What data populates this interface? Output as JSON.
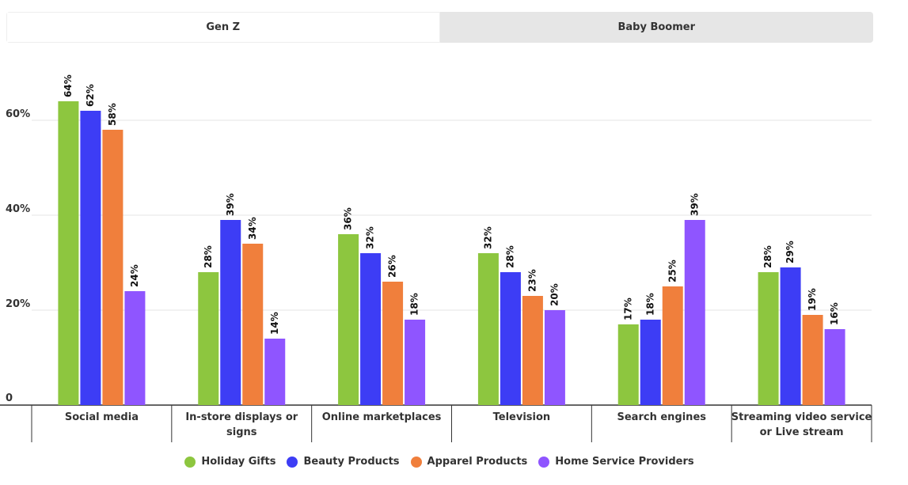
{
  "tabs": [
    {
      "label": "Gen Z",
      "active": true
    },
    {
      "label": "Baby Boomer",
      "active": false
    }
  ],
  "chart_data": {
    "type": "bar",
    "title": "",
    "xlabel": "",
    "ylabel": "",
    "categories": [
      [
        "Social media"
      ],
      [
        "In-store displays or",
        "signs"
      ],
      [
        "Online marketplaces"
      ],
      [
        "Television"
      ],
      [
        "Search engines"
      ],
      [
        "Streaming video service",
        "or Live stream"
      ]
    ],
    "series": [
      {
        "name": "Holiday Gifts",
        "color": "#8dc63f",
        "values": [
          64,
          28,
          36,
          32,
          17,
          28
        ]
      },
      {
        "name": "Beauty Products",
        "color": "#3d3df5",
        "values": [
          62,
          39,
          32,
          28,
          18,
          29
        ]
      },
      {
        "name": "Apparel Products",
        "color": "#f07f3c",
        "values": [
          58,
          34,
          26,
          23,
          25,
          19
        ]
      },
      {
        "name": "Home Service Providers",
        "color": "#8f55ff",
        "values": [
          24,
          14,
          18,
          20,
          39,
          16
        ]
      }
    ],
    "ylim": [
      0,
      70
    ],
    "yticks": [
      0,
      20,
      40,
      60
    ],
    "ytick_labels": [
      "0",
      "20%",
      "40%",
      "60%"
    ],
    "value_suffix": "%",
    "grid": true,
    "legend_position": "bottom-center"
  }
}
